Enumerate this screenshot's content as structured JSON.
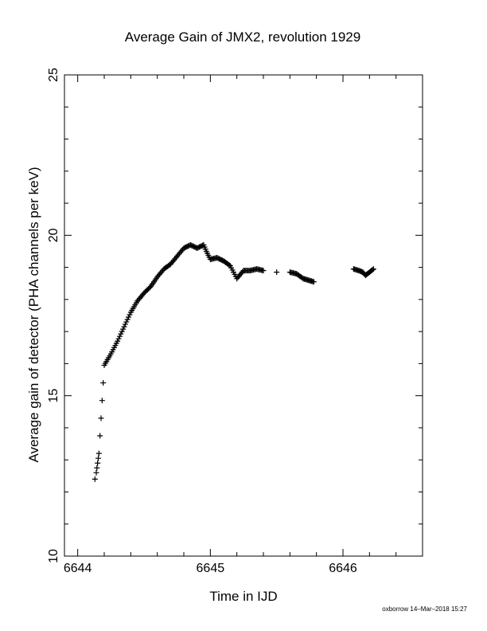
{
  "chart_data": {
    "type": "scatter",
    "title": "Average Gain of JMX2, revolution 1929",
    "xlabel": "Time in IJD",
    "ylabel": "Average gain of detector (PHA channels per keV)",
    "xlim": [
      6643.9,
      6646.6
    ],
    "ylim": [
      10,
      25
    ],
    "xticks": [
      6644,
      6645,
      6646
    ],
    "xtick_labels": [
      "6644",
      "6645",
      "6646"
    ],
    "yticks": [
      10,
      15,
      20,
      25
    ],
    "ytick_labels": [
      "10",
      "15",
      "20",
      "25"
    ],
    "x_minor_step": 0.2,
    "y_minor_step": 1,
    "marker": "+",
    "grid": false,
    "series": [
      {
        "points": [
          [
            6644.13,
            12.4
          ],
          [
            6644.14,
            12.6
          ],
          [
            6644.145,
            12.75
          ],
          [
            6644.15,
            12.9
          ],
          [
            6644.155,
            13.05
          ],
          [
            6644.16,
            13.2
          ],
          [
            6644.2,
            15.95
          ],
          [
            6644.25,
            16.3
          ],
          [
            6644.3,
            16.7
          ],
          [
            6644.35,
            17.15
          ],
          [
            6644.4,
            17.6
          ],
          [
            6644.45,
            17.95
          ],
          [
            6644.5,
            18.2
          ],
          [
            6644.55,
            18.4
          ],
          [
            6644.6,
            18.7
          ],
          [
            6644.65,
            18.95
          ],
          [
            6644.7,
            19.1
          ],
          [
            6644.75,
            19.35
          ],
          [
            6644.8,
            19.6
          ],
          [
            6644.85,
            19.7
          ],
          [
            6644.9,
            19.6
          ],
          [
            6644.95,
            19.7
          ],
          [
            6644.97,
            19.5
          ],
          [
            6645.0,
            19.25
          ],
          [
            6645.05,
            19.3
          ],
          [
            6645.1,
            19.2
          ],
          [
            6645.15,
            19.05
          ],
          [
            6645.2,
            18.65
          ],
          [
            6645.25,
            18.9
          ],
          [
            6645.3,
            18.9
          ],
          [
            6645.35,
            18.95
          ],
          [
            6645.4,
            18.9
          ],
          [
            6645.5,
            18.85
          ],
          [
            6645.6,
            18.85
          ],
          [
            6645.65,
            18.8
          ],
          [
            6645.7,
            18.65
          ],
          [
            6645.78,
            18.55
          ],
          [
            6646.08,
            18.95
          ],
          [
            6646.12,
            18.9
          ],
          [
            6646.15,
            18.85
          ],
          [
            6646.17,
            18.75
          ],
          [
            6646.2,
            18.85
          ],
          [
            6646.23,
            18.95
          ]
        ]
      }
    ]
  },
  "footer": {
    "stamp": "oxborrow 14–Mar–2018 15:27"
  }
}
